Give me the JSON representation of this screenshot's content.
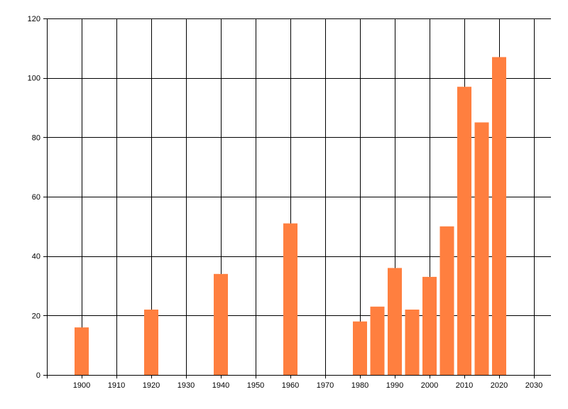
{
  "chart_data": {
    "type": "bar",
    "title": "",
    "xlabel": "",
    "ylabel": "",
    "x": [
      1900,
      1920,
      1940,
      1960,
      1980,
      1985,
      1990,
      1995,
      2000,
      2005,
      2010,
      2015,
      2020
    ],
    "values": [
      16,
      22,
      34,
      51,
      18,
      23,
      36,
      22,
      33,
      50,
      97,
      85,
      107
    ],
    "xlim": [
      1890,
      2035
    ],
    "ylim": [
      0,
      120
    ],
    "x_ticks": [
      1900,
      1910,
      1920,
      1930,
      1940,
      1950,
      1960,
      1970,
      1980,
      1990,
      2000,
      2010,
      2020,
      2030
    ],
    "x_tick_labels": [
      "1900",
      "1910",
      "1920",
      "1930",
      "1940",
      "1950",
      "1960",
      "1970",
      "1980",
      "1990",
      "2000",
      "2010",
      "2020",
      "2030"
    ],
    "y_ticks": [
      0,
      20,
      40,
      60,
      80,
      100,
      120
    ],
    "y_tick_labels": [
      "0",
      "20",
      "40",
      "60",
      "80",
      "100",
      "120"
    ],
    "grid": true,
    "legend": "none",
    "bar_color": "#ff7f3f",
    "grid_color": "#000000"
  }
}
